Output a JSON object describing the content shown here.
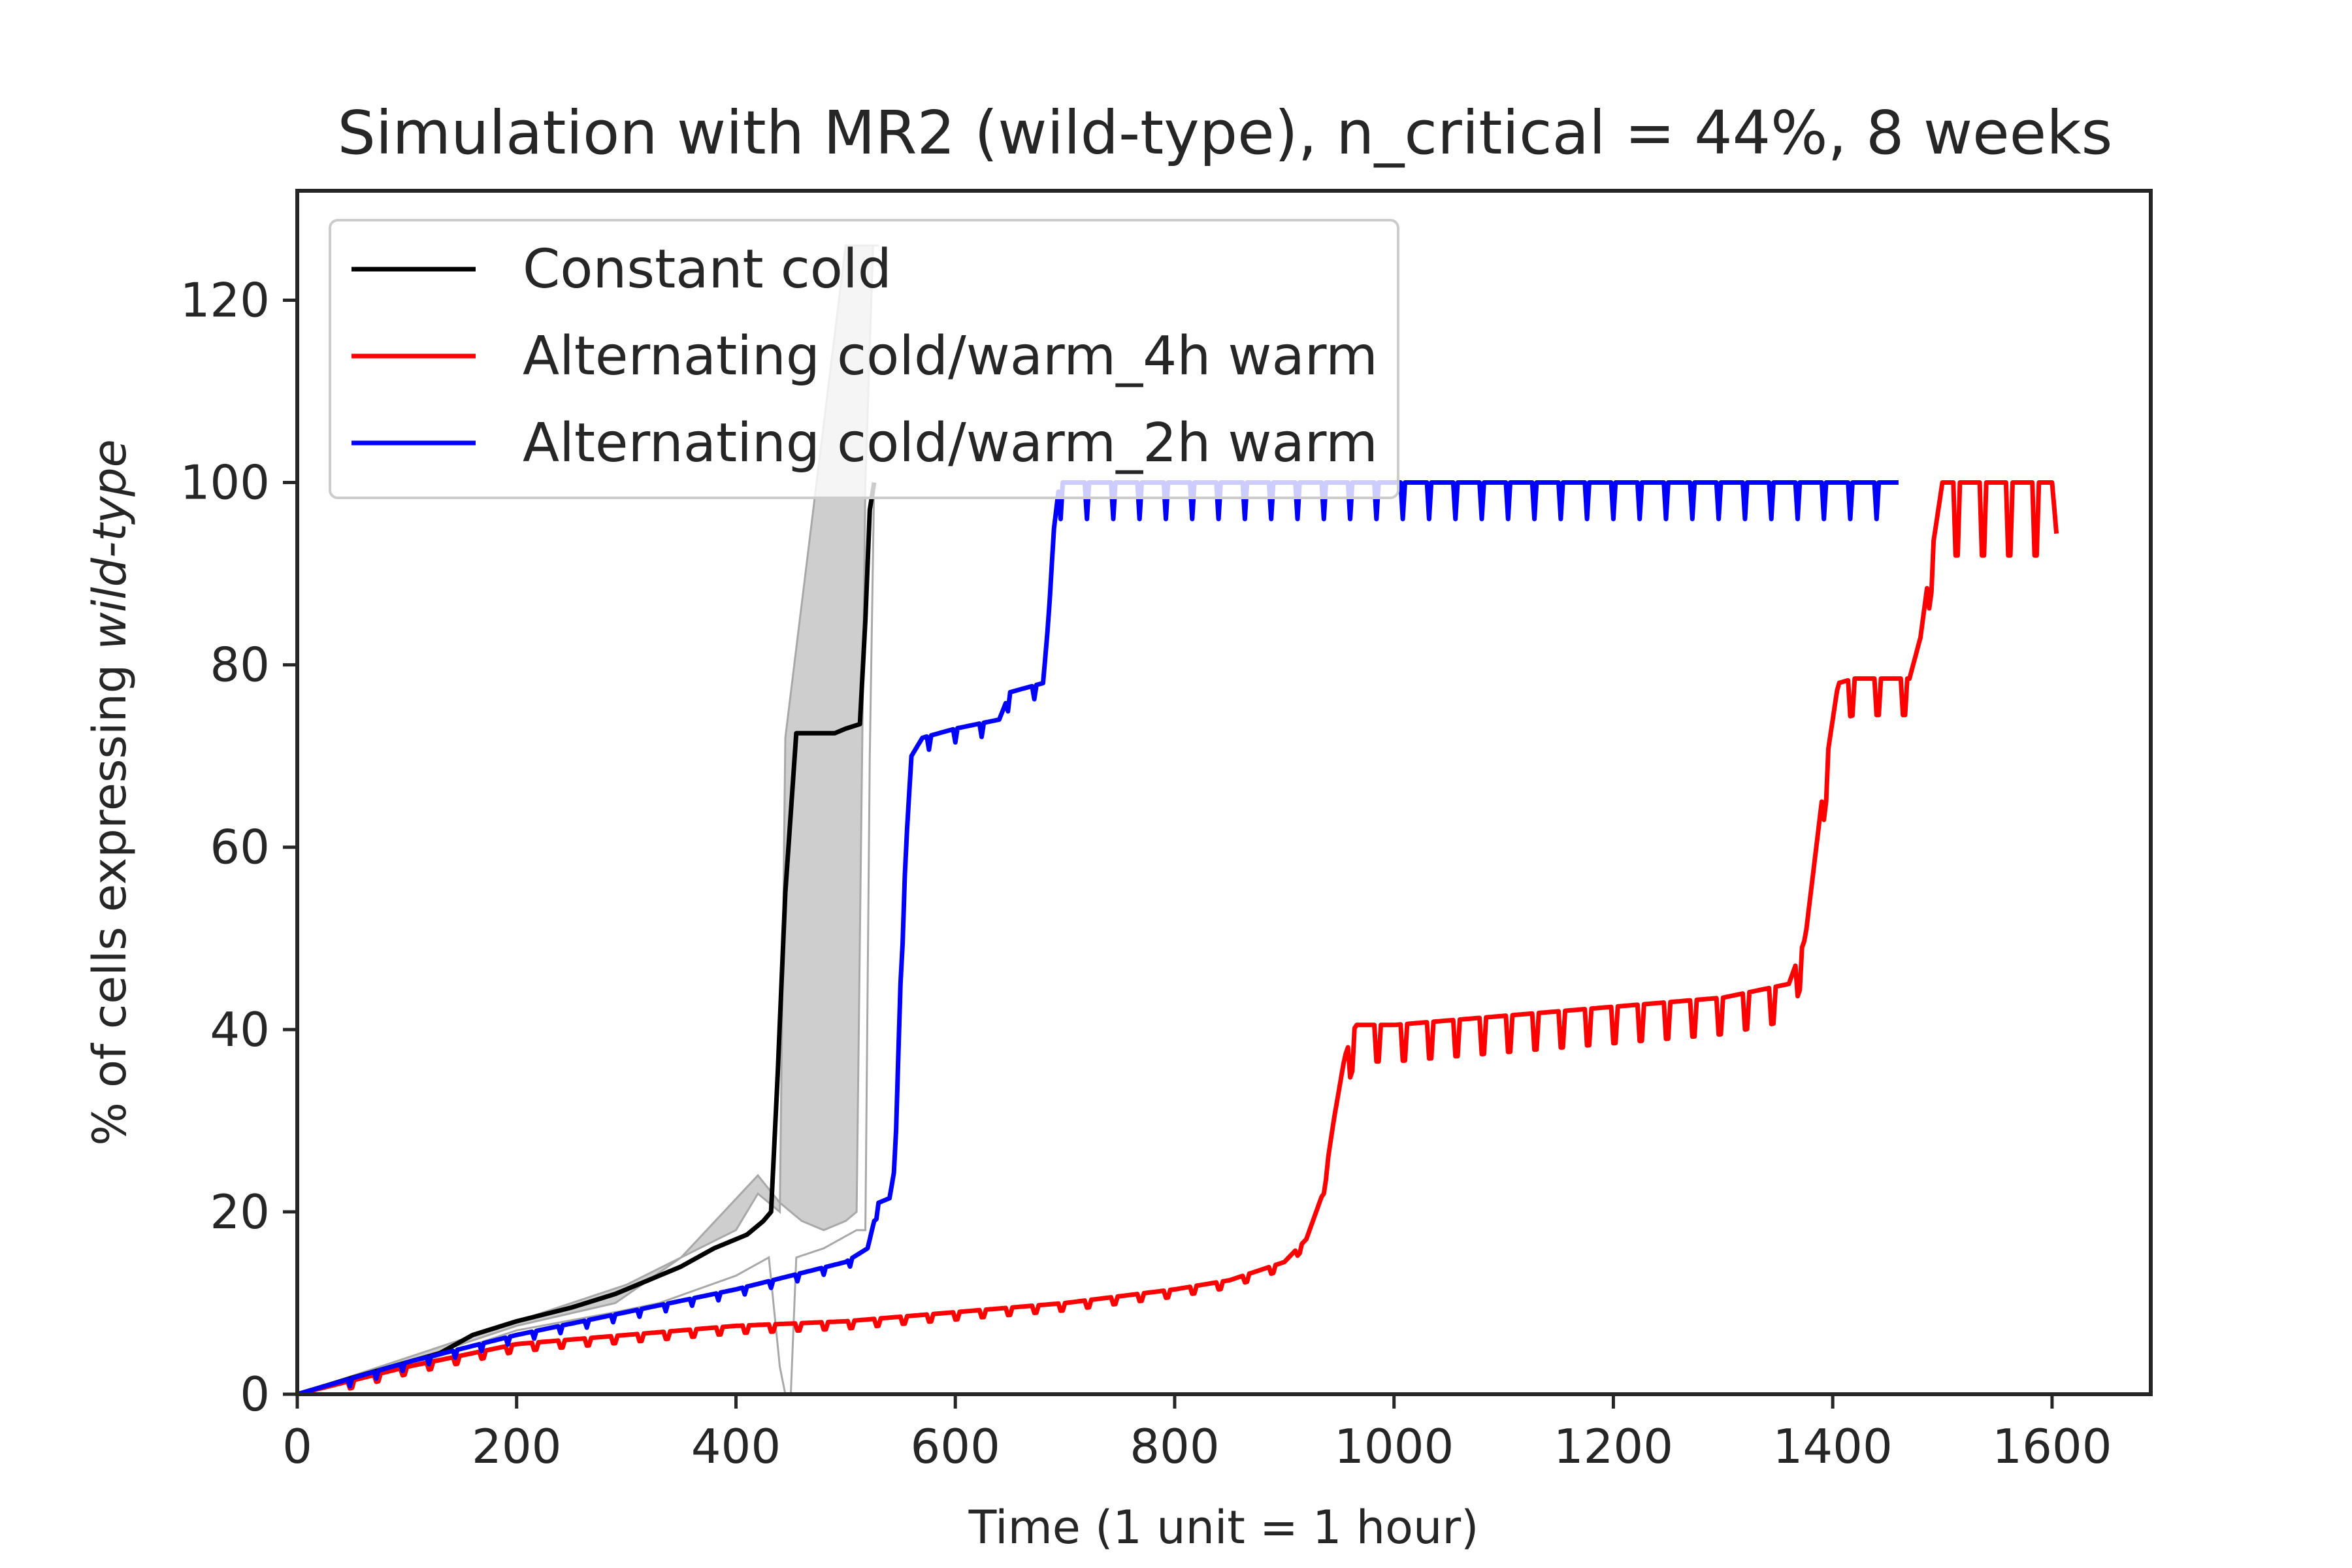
{
  "chart_data": {
    "type": "line",
    "title": "Simulation with MR2 (wild-type), n_critical = 44%, 8 weeks",
    "xlabel": "Time (1 unit = 1 hour)",
    "ylabel_prefix": "% of cells expressing ",
    "ylabel_italic": "wild-type",
    "xlim": [
      0,
      1690
    ],
    "ylim": [
      0,
      132
    ],
    "xticks": [
      0,
      200,
      400,
      600,
      800,
      1000,
      1200,
      1400,
      1600
    ],
    "yticks": [
      0,
      20,
      40,
      60,
      80,
      100,
      120
    ],
    "grid": false,
    "legend_position": "upper-left",
    "band": {
      "series": "Constant cold",
      "color": "#bdbdbd",
      "upper": [
        [
          0,
          0
        ],
        [
          100,
          3.5
        ],
        [
          200,
          7.5
        ],
        [
          290,
          10
        ],
        [
          350,
          15
        ],
        [
          420,
          24
        ],
        [
          440,
          21
        ],
        [
          460,
          19
        ],
        [
          480,
          18
        ],
        [
          500,
          19
        ],
        [
          510,
          20
        ],
        [
          518,
          100
        ],
        [
          525,
          126
        ],
        [
          530,
          126
        ],
        [
          505,
          126
        ],
        [
          500,
          126
        ],
        [
          445,
          72
        ],
        [
          440,
          20
        ],
        [
          420,
          22
        ],
        [
          400,
          18
        ],
        [
          350,
          15
        ],
        [
          300,
          12
        ],
        [
          200,
          8
        ],
        [
          100,
          4
        ],
        [
          0,
          0
        ]
      ],
      "lower": [
        [
          0,
          0
        ],
        [
          100,
          3
        ],
        [
          200,
          7
        ],
        [
          290,
          9
        ],
        [
          330,
          10
        ],
        [
          400,
          13
        ],
        [
          430,
          15
        ],
        [
          440,
          3
        ],
        [
          445,
          0
        ],
        [
          450,
          0
        ],
        [
          455,
          15
        ],
        [
          480,
          16
        ],
        [
          510,
          18
        ],
        [
          518,
          18
        ],
        [
          522,
          70
        ],
        [
          526,
          100
        ]
      ]
    },
    "series": [
      {
        "name": "Constant cold",
        "color": "#000000",
        "points": [
          [
            0,
            0
          ],
          [
            50,
            1.8
          ],
          [
            100,
            3.5
          ],
          [
            130,
            4.5
          ],
          [
            160,
            6.5
          ],
          [
            200,
            8
          ],
          [
            250,
            9.5
          ],
          [
            290,
            11
          ],
          [
            320,
            12.5
          ],
          [
            350,
            14
          ],
          [
            380,
            16
          ],
          [
            410,
            17.5
          ],
          [
            425,
            19
          ],
          [
            432,
            20
          ],
          [
            438,
            35
          ],
          [
            445,
            55
          ],
          [
            455,
            72.5
          ],
          [
            470,
            72.5
          ],
          [
            490,
            72.5
          ],
          [
            500,
            73
          ],
          [
            513,
            73.5
          ],
          [
            518,
            85
          ],
          [
            522,
            97
          ],
          [
            526,
            100
          ]
        ]
      },
      {
        "name": "Alternating cold/warm_4h warm",
        "color": "#ff0000",
        "points": [
          [
            0,
            0
          ],
          [
            100,
            3
          ],
          [
            200,
            5.5
          ],
          [
            300,
            6.5
          ],
          [
            400,
            7.5
          ],
          [
            500,
            8
          ],
          [
            600,
            9
          ],
          [
            700,
            10
          ],
          [
            800,
            11.5
          ],
          [
            850,
            12.5
          ],
          [
            900,
            14.5
          ],
          [
            920,
            17
          ],
          [
            935,
            22
          ],
          [
            945,
            30
          ],
          [
            955,
            37
          ],
          [
            965,
            40.5
          ],
          [
            980,
            40.5
          ],
          [
            1000,
            40.5
          ],
          [
            1100,
            41.5
          ],
          [
            1200,
            42.5
          ],
          [
            1300,
            43.5
          ],
          [
            1360,
            45
          ],
          [
            1375,
            50
          ],
          [
            1385,
            60
          ],
          [
            1395,
            70
          ],
          [
            1405,
            78
          ],
          [
            1420,
            78.5
          ],
          [
            1470,
            78.5
          ],
          [
            1480,
            83
          ],
          [
            1490,
            92
          ],
          [
            1500,
            100
          ],
          [
            1600,
            100
          ],
          [
            1605,
            93
          ]
        ]
      },
      {
        "name": "Alternating cold/warm_2h warm",
        "color": "#0000ff",
        "points": [
          [
            0,
            0
          ],
          [
            100,
            3.5
          ],
          [
            200,
            6.5
          ],
          [
            300,
            9
          ],
          [
            400,
            11.5
          ],
          [
            450,
            13
          ],
          [
            500,
            14.5
          ],
          [
            520,
            16
          ],
          [
            530,
            21
          ],
          [
            540,
            21.5
          ],
          [
            545,
            25
          ],
          [
            550,
            45
          ],
          [
            555,
            60
          ],
          [
            560,
            70
          ],
          [
            570,
            72
          ],
          [
            600,
            73
          ],
          [
            640,
            74
          ],
          [
            650,
            77
          ],
          [
            680,
            78
          ],
          [
            685,
            85
          ],
          [
            690,
            95
          ],
          [
            695,
            100
          ],
          [
            1460,
            100
          ]
        ]
      }
    ]
  }
}
